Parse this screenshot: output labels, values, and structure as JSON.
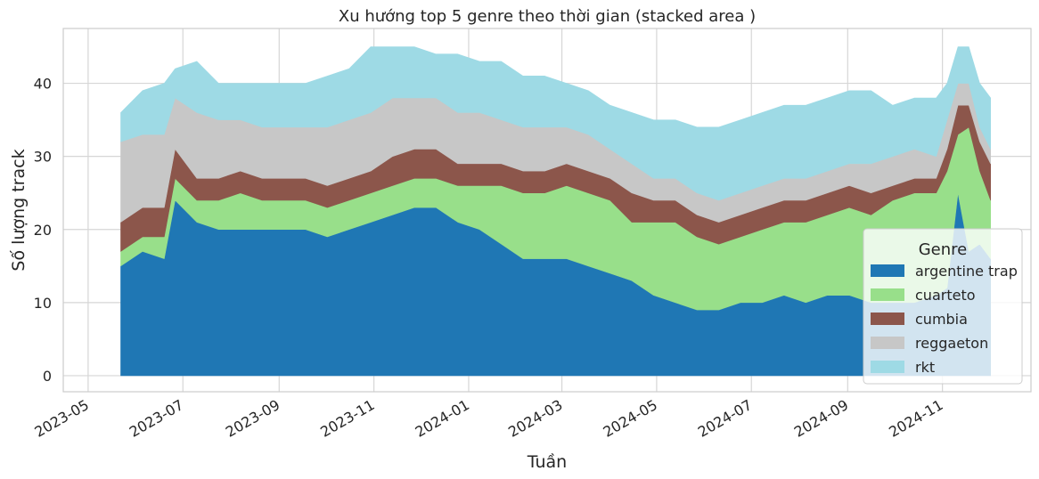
{
  "chart_data": {
    "type": "area",
    "stacked": true,
    "title": "Xu hướng top 5 genre theo thời gian (stacked area )",
    "xlabel": "Tuần",
    "ylabel": "Số lượng track",
    "x_ticks": [
      "2023-05",
      "2023-07",
      "2023-09",
      "2023-11",
      "2024-01",
      "2024-03",
      "2024-05",
      "2024-07",
      "2024-09",
      "2024-11"
    ],
    "y_ticks": [
      0,
      10,
      20,
      30,
      40
    ],
    "xlim": [
      "2023-04-15",
      "2024-12-28"
    ],
    "ylim": [
      -2.2,
      47.5
    ],
    "grid": true,
    "legend": {
      "title": "Genre",
      "position": "right"
    },
    "dates": [
      "2023-05-22",
      "2023-06-05",
      "2023-06-19",
      "2023-06-26",
      "2023-07-10",
      "2023-07-24",
      "2023-08-07",
      "2023-08-21",
      "2023-09-04",
      "2023-09-18",
      "2023-10-02",
      "2023-10-16",
      "2023-10-30",
      "2023-11-13",
      "2023-11-27",
      "2023-12-11",
      "2023-12-25",
      "2024-01-08",
      "2024-01-22",
      "2024-02-05",
      "2024-02-19",
      "2024-03-04",
      "2024-03-18",
      "2024-04-01",
      "2024-04-15",
      "2024-04-29",
      "2024-05-13",
      "2024-05-27",
      "2024-06-10",
      "2024-06-24",
      "2024-07-08",
      "2024-07-22",
      "2024-08-05",
      "2024-08-19",
      "2024-09-02",
      "2024-09-16",
      "2024-09-30",
      "2024-10-14",
      "2024-10-28",
      "2024-11-04",
      "2024-11-11",
      "2024-11-18",
      "2024-11-25",
      "2024-12-02"
    ],
    "series": [
      {
        "name": "argentine trap",
        "color": "#1f77b4",
        "values": [
          15,
          17,
          16,
          24,
          21,
          20,
          20,
          20,
          20,
          20,
          19,
          20,
          21,
          22,
          23,
          23,
          21,
          20,
          18,
          16,
          16,
          16,
          15,
          14,
          13,
          11,
          10,
          9,
          9,
          10,
          10,
          11,
          10,
          11,
          11,
          10,
          10,
          10,
          11,
          12,
          25,
          17,
          18,
          16
        ]
      },
      {
        "name": "cuarteto",
        "color": "#98df8a",
        "values": [
          2,
          2,
          3,
          3,
          3,
          4,
          5,
          4,
          4,
          4,
          4,
          4,
          4,
          4,
          4,
          4,
          5,
          6,
          8,
          9,
          9,
          10,
          10,
          10,
          8,
          10,
          11,
          10,
          9,
          9,
          10,
          10,
          11,
          11,
          12,
          12,
          14,
          15,
          14,
          16,
          8,
          17,
          10,
          8
        ]
      },
      {
        "name": "cumbia",
        "color": "#8c564b",
        "values": [
          4,
          4,
          4,
          4,
          3,
          3,
          3,
          3,
          3,
          3,
          3,
          3,
          3,
          4,
          4,
          4,
          3,
          3,
          3,
          3,
          3,
          3,
          3,
          3,
          4,
          3,
          3,
          3,
          3,
          3,
          3,
          3,
          3,
          3,
          3,
          3,
          2,
          2,
          2,
          3,
          4,
          3,
          4,
          5
        ]
      },
      {
        "name": "reggaeton",
        "color": "#c7c7c7",
        "values": [
          11,
          10,
          10,
          7,
          9,
          8,
          7,
          7,
          7,
          7,
          8,
          8,
          8,
          8,
          7,
          7,
          7,
          7,
          6,
          6,
          6,
          5,
          5,
          4,
          4,
          3,
          3,
          3,
          3,
          3,
          3,
          3,
          3,
          3,
          3,
          4,
          4,
          4,
          3,
          4,
          3,
          3,
          2,
          2
        ]
      },
      {
        "name": "rkt",
        "color": "#9edae5",
        "values": [
          4,
          6,
          7,
          4,
          7,
          5,
          5,
          6,
          6,
          6,
          7,
          7,
          9,
          7,
          7,
          6,
          8,
          7,
          8,
          7,
          7,
          6,
          6,
          6,
          7,
          8,
          8,
          9,
          10,
          10,
          10,
          10,
          10,
          10,
          10,
          10,
          7,
          7,
          8,
          5,
          5,
          5,
          6,
          7
        ]
      }
    ]
  }
}
